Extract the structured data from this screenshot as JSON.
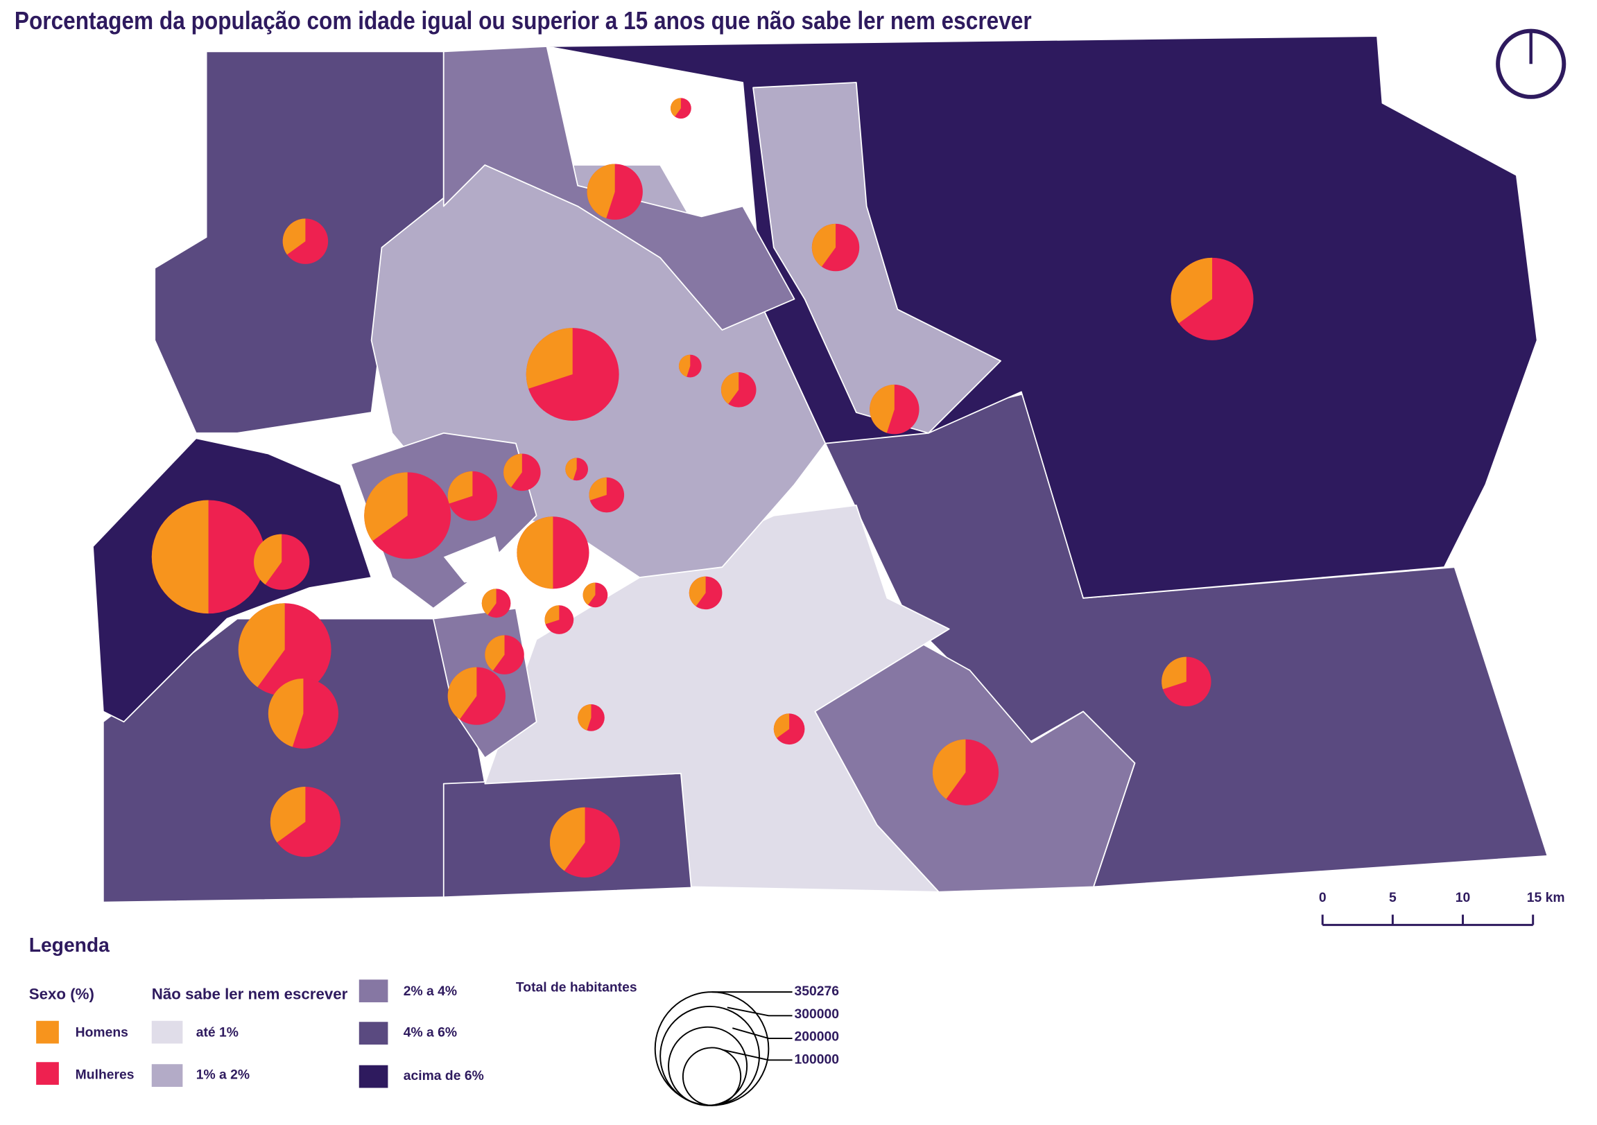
{
  "title": "Porcentagem da população com idade igual ou superior a 15 anos que não sabe ler nem escrever",
  "legend": {
    "title": "Legenda",
    "sex": {
      "title": "Sexo (%)",
      "items": [
        {
          "label": "Homens",
          "color": "#f7941d"
        },
        {
          "label": "Mulheres",
          "color": "#ee2150"
        }
      ]
    },
    "literacy": {
      "title": "Não sabe ler nem escrever",
      "items": [
        {
          "label": "até 1%",
          "color": "#e0dde9"
        },
        {
          "label": "1% a 2%",
          "color": "#b3abc7"
        },
        {
          "label": "2% a 4%",
          "color": "#8677a3"
        },
        {
          "label": "4% a 6%",
          "color": "#5a4a80"
        },
        {
          "label": "acima de 6%",
          "color": "#2e1a5e"
        }
      ]
    },
    "population": {
      "title": "Total de habitantes",
      "labels": [
        350276,
        300000,
        200000,
        100000
      ]
    }
  },
  "scale_bar": {
    "labels": [
      "0",
      "5",
      "10",
      "15 km"
    ]
  }
}
